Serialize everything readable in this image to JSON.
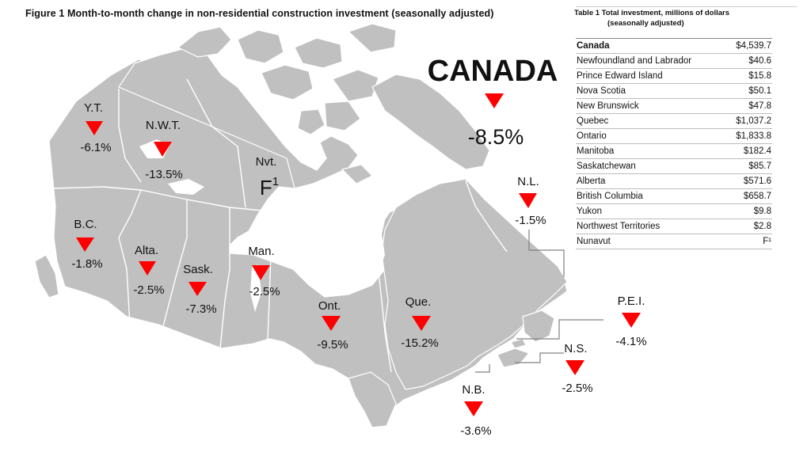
{
  "figure_title": "Figure 1  Month-to-month change in non-residential construction investment (seasonally adjusted)",
  "national": {
    "name": "CANADA",
    "change": "-8.5%",
    "direction": "down"
  },
  "provinces": [
    {
      "id": "yt",
      "abbr": "Y.T.",
      "change": "-6.1%",
      "direction": "down"
    },
    {
      "id": "nwt",
      "abbr": "N.W.T.",
      "change": "-13.5%",
      "direction": "down"
    },
    {
      "id": "nvt",
      "abbr": "Nvt.",
      "change": "F",
      "footnote": "1",
      "direction": "none"
    },
    {
      "id": "bc",
      "abbr": "B.C.",
      "change": "-1.8%",
      "direction": "down"
    },
    {
      "id": "alta",
      "abbr": "Alta.",
      "change": "-2.5%",
      "direction": "down"
    },
    {
      "id": "sask",
      "abbr": "Sask.",
      "change": "-7.3%",
      "direction": "down"
    },
    {
      "id": "man",
      "abbr": "Man.",
      "change": "-2.5%",
      "direction": "down"
    },
    {
      "id": "ont",
      "abbr": "Ont.",
      "change": "-9.5%",
      "direction": "down"
    },
    {
      "id": "que",
      "abbr": "Que.",
      "change": "-15.2%",
      "direction": "down"
    },
    {
      "id": "nl",
      "abbr": "N.L.",
      "change": "-1.5%",
      "direction": "down"
    },
    {
      "id": "pei",
      "abbr": "P.E.I.",
      "change": "-4.1%",
      "direction": "down"
    },
    {
      "id": "ns",
      "abbr": "N.S.",
      "change": "-2.5%",
      "direction": "down"
    },
    {
      "id": "nb",
      "abbr": "N.B.",
      "change": "-3.6%",
      "direction": "down"
    }
  ],
  "table": {
    "title_line1": "Table 1  Total investment, millions of dollars",
    "title_line2": "(seasonally  adjusted)",
    "rows": [
      {
        "label": "Canada",
        "value": "$4,539.7"
      },
      {
        "label": "Newfoundland and Labrador",
        "value": "$40.6"
      },
      {
        "label": "Prince Edward Island",
        "value": "$15.8"
      },
      {
        "label": "Nova Scotia",
        "value": "$50.1"
      },
      {
        "label": "New Brunswick",
        "value": "$47.8"
      },
      {
        "label": "Quebec",
        "value": "$1,037.2"
      },
      {
        "label": "Ontario",
        "value": "$1,833.8"
      },
      {
        "label": "Manitoba",
        "value": "$182.4"
      },
      {
        "label": "Saskatchewan",
        "value": "$85.7"
      },
      {
        "label": "Alberta",
        "value": "$571.6"
      },
      {
        "label": "British Columbia",
        "value": "$658.7"
      },
      {
        "label": "Yukon",
        "value": "$9.8"
      },
      {
        "label": "Northwest Territories",
        "value": "$2.8"
      },
      {
        "label": "Nunavut",
        "value": "F¹"
      }
    ]
  },
  "colors": {
    "land": "#c0c0c0",
    "border": "#ffffff",
    "arrow": "#ff0000",
    "background": "#ffffff"
  }
}
